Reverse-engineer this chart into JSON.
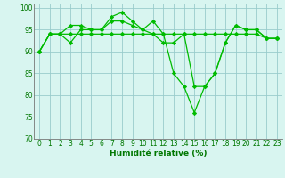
{
  "x": [
    0,
    1,
    2,
    3,
    4,
    5,
    6,
    7,
    8,
    9,
    10,
    11,
    12,
    13,
    14,
    15,
    16,
    17,
    18,
    19,
    20,
    21,
    22,
    23
  ],
  "lines": [
    [
      90,
      94,
      94,
      94,
      94,
      94,
      94,
      94,
      94,
      94,
      94,
      94,
      94,
      94,
      94,
      94,
      94,
      94,
      94,
      94,
      94,
      94,
      93,
      93
    ],
    [
      90,
      94,
      94,
      92,
      95,
      95,
      95,
      97,
      97,
      96,
      95,
      94,
      92,
      92,
      94,
      82,
      82,
      85,
      92,
      96,
      95,
      95,
      93,
      93
    ],
    [
      90,
      94,
      94,
      96,
      96,
      95,
      95,
      98,
      99,
      97,
      95,
      97,
      94,
      85,
      82,
      76,
      82,
      85,
      92,
      96,
      95,
      95,
      93,
      93
    ]
  ],
  "line_color": "#00bb00",
  "bg_color": "#d8f5f0",
  "grid_color": "#99cccc",
  "ylim": [
    70,
    101
  ],
  "xlim": [
    -0.5,
    23.5
  ],
  "yticks": [
    70,
    75,
    80,
    85,
    90,
    95,
    100
  ],
  "xticks": [
    0,
    1,
    2,
    3,
    4,
    5,
    6,
    7,
    8,
    9,
    10,
    11,
    12,
    13,
    14,
    15,
    16,
    17,
    18,
    19,
    20,
    21,
    22,
    23
  ],
  "xlabel": "Humidité relative (%)",
  "marker": "D",
  "markersize": 2.2,
  "linewidth": 0.9,
  "xlabel_color": "#007700",
  "xlabel_fontsize": 6.5,
  "tick_fontsize": 5.5,
  "tick_color": "#007700",
  "fig_width": 3.2,
  "fig_height": 2.0,
  "dpi": 100
}
